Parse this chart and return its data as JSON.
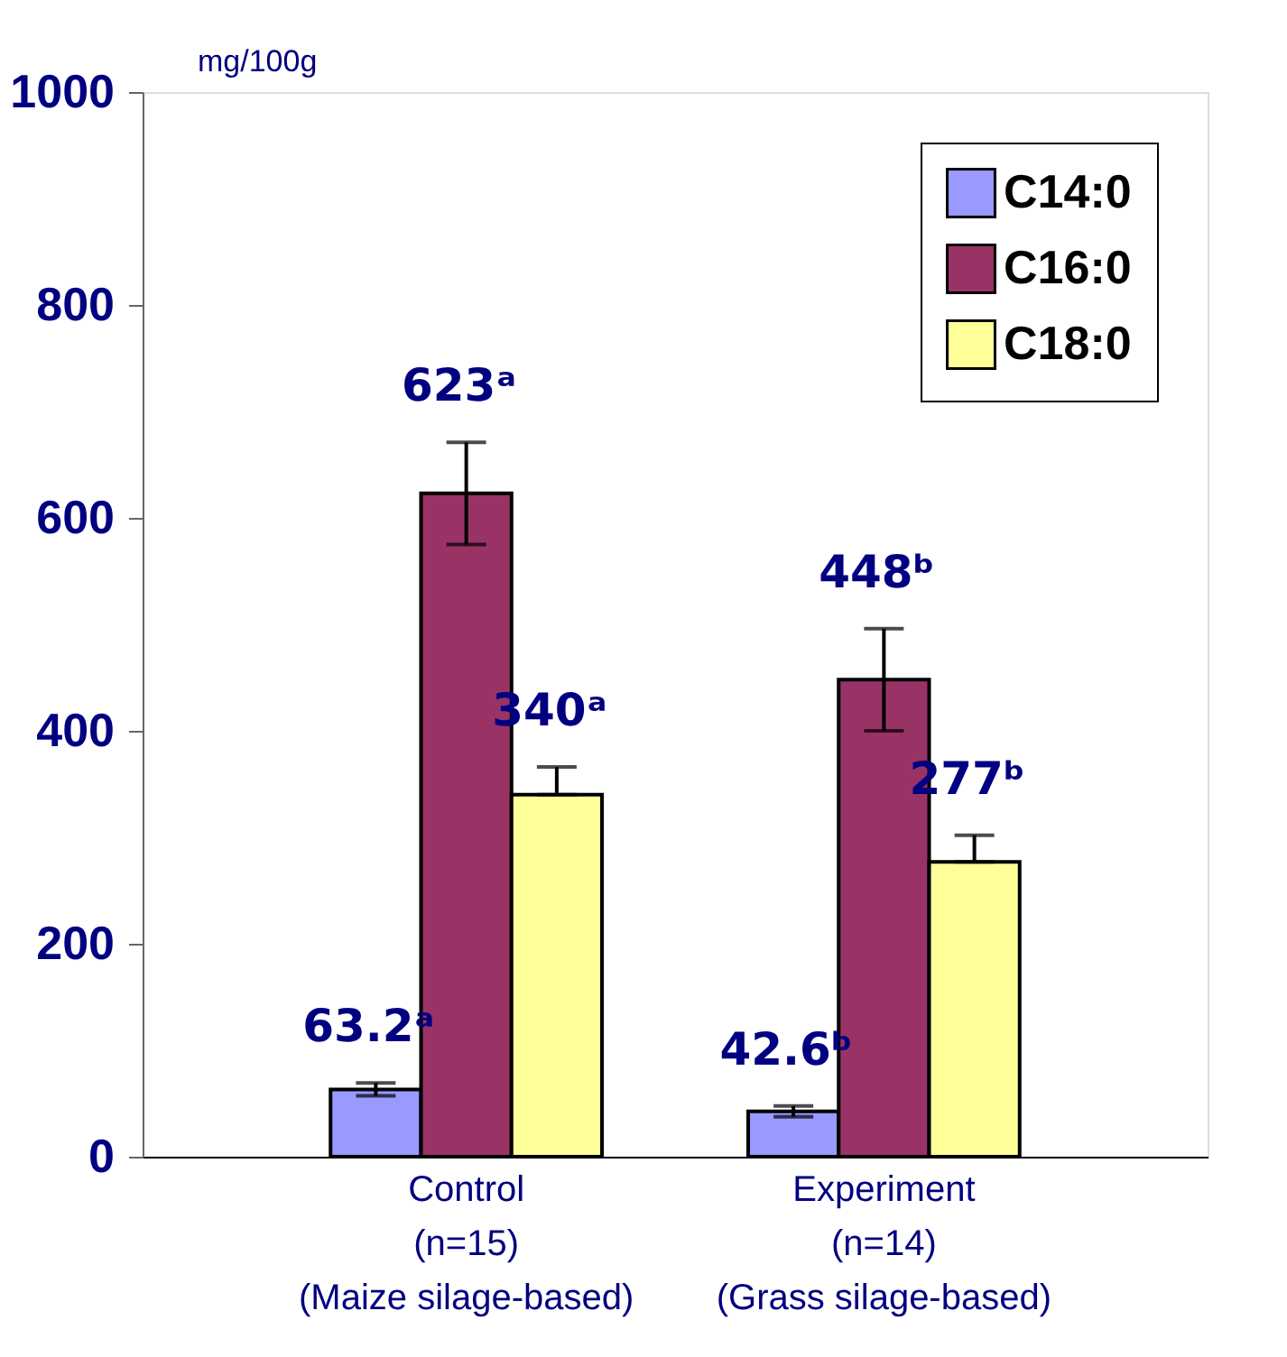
{
  "chart_data": {
    "type": "bar",
    "ylabel": "mg/100g",
    "categories": [
      "Control\n(n=15)\n(Maize silage-based)",
      "Experiment\n(n=14)\n(Grass silage-based)"
    ],
    "series": [
      {
        "name": "C14:0",
        "color": "#9999ff",
        "values": [
          63.2,
          42.6
        ],
        "errors": [
          6,
          5
        ],
        "value_labels": [
          "63.2ᵃ",
          "42.6ᵇ"
        ]
      },
      {
        "name": "C16:0",
        "color": "#993366",
        "values": [
          623,
          448
        ],
        "errors": [
          48,
          48
        ],
        "value_labels": [
          "623ᵃ",
          "448ᵇ"
        ]
      },
      {
        "name": "C18:0",
        "color": "#ffff99",
        "values": [
          340,
          277
        ],
        "errors": [
          [
            340,
            366
          ],
          [
            277,
            302
          ]
        ],
        "value_labels": [
          "340ᵃ",
          "277ᵇ"
        ]
      }
    ],
    "ylim": [
      0,
      1000
    ],
    "yticks": [
      0,
      200,
      400,
      600,
      800,
      1000
    ],
    "grid": false,
    "legend": "top right"
  }
}
